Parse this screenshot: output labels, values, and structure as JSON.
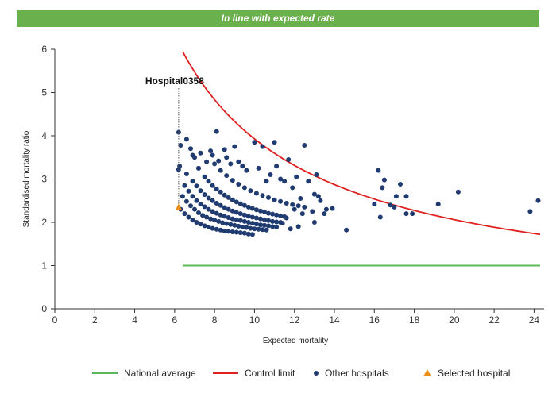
{
  "banner": "In line with expected rate",
  "legend": {
    "national": "National average",
    "control": "Control limit",
    "others": "Other hospitals",
    "selected": "Selected hospital"
  },
  "colors": {
    "national": "#5cb85c",
    "control": "#e02020",
    "others": "#1f3b70",
    "selected": "#e8901a",
    "banner": "#6ab04c"
  },
  "chart_data": {
    "type": "scatter",
    "title": "",
    "xlabel": "Expected mortality",
    "ylabel": "Standardised mortality ratio",
    "xlim": [
      0,
      24.5
    ],
    "ylim": [
      0,
      6
    ],
    "xticks": [
      0,
      2,
      4,
      6,
      8,
      10,
      12,
      14,
      16,
      18,
      20,
      22,
      24
    ],
    "yticks": [
      0,
      1,
      2,
      3,
      4,
      5,
      6
    ],
    "grid": false,
    "legend_position": "bottom",
    "annotation": {
      "label": "Hospital0358",
      "x": 6.2
    },
    "national_average": {
      "y": 1,
      "x_range": [
        6.4,
        24.3
      ]
    },
    "control_limit": {
      "x_range": [
        6.4,
        24.3
      ],
      "y_at_start": 5.95,
      "y_at_end": 1.72
    },
    "selected_hospital": {
      "x": 6.2,
      "y": 2.35
    },
    "other_hospitals": [
      [
        6.2,
        4.08
      ],
      [
        6.25,
        3.3
      ],
      [
        6.2,
        3.22
      ],
      [
        6.3,
        3.78
      ],
      [
        6.6,
        3.92
      ],
      [
        6.8,
        3.7
      ],
      [
        6.9,
        3.55
      ],
      [
        7.0,
        3.5
      ],
      [
        7.2,
        3.25
      ],
      [
        7.3,
        3.6
      ],
      [
        7.6,
        3.4
      ],
      [
        7.8,
        3.65
      ],
      [
        7.9,
        3.55
      ],
      [
        8.1,
        4.1
      ],
      [
        8.2,
        3.42
      ],
      [
        8.5,
        3.68
      ],
      [
        8.6,
        3.5
      ],
      [
        8.8,
        3.35
      ],
      [
        9.0,
        3.75
      ],
      [
        9.2,
        3.4
      ],
      [
        9.4,
        3.3
      ],
      [
        9.6,
        3.2
      ],
      [
        10.0,
        3.85
      ],
      [
        10.2,
        3.25
      ],
      [
        10.4,
        3.75
      ],
      [
        10.6,
        2.95
      ],
      [
        10.8,
        3.1
      ],
      [
        11.0,
        3.85
      ],
      [
        11.1,
        3.3
      ],
      [
        11.3,
        3.0
      ],
      [
        11.5,
        2.95
      ],
      [
        11.7,
        3.45
      ],
      [
        11.9,
        2.8
      ],
      [
        12.1,
        3.05
      ],
      [
        12.3,
        2.55
      ],
      [
        12.5,
        3.78
      ],
      [
        12.7,
        2.95
      ],
      [
        12.9,
        2.25
      ],
      [
        13.1,
        3.1
      ],
      [
        13.3,
        2.5
      ],
      [
        13.6,
        2.3
      ],
      [
        13.9,
        2.32
      ],
      [
        13.0,
        2.65
      ],
      [
        13.2,
        2.6
      ],
      [
        12.0,
        2.3
      ],
      [
        12.4,
        2.2
      ],
      [
        11.6,
        2.1
      ],
      [
        11.4,
        1.98
      ],
      [
        11.8,
        1.85
      ],
      [
        12.2,
        1.9
      ],
      [
        13.5,
        2.2
      ],
      [
        13.0,
        2.0
      ],
      [
        14.6,
        1.82
      ],
      [
        16.2,
        3.2
      ],
      [
        16.4,
        2.8
      ],
      [
        16.5,
        2.98
      ],
      [
        16.3,
        2.12
      ],
      [
        16.8,
        2.4
      ],
      [
        17.0,
        2.35
      ],
      [
        17.1,
        2.6
      ],
      [
        17.3,
        2.88
      ],
      [
        17.6,
        2.2
      ],
      [
        17.6,
        2.6
      ],
      [
        17.9,
        2.2
      ],
      [
        16.0,
        2.42
      ],
      [
        19.2,
        2.42
      ],
      [
        20.2,
        2.7
      ],
      [
        23.8,
        2.25
      ],
      [
        24.2,
        2.5
      ],
      [
        6.3,
        2.3
      ],
      [
        6.5,
        2.2
      ],
      [
        6.7,
        2.12
      ],
      [
        6.9,
        2.05
      ],
      [
        7.1,
        2.0
      ],
      [
        7.3,
        1.96
      ],
      [
        7.5,
        1.92
      ],
      [
        7.7,
        1.89
      ],
      [
        7.9,
        1.86
      ],
      [
        8.1,
        1.84
      ],
      [
        8.3,
        1.82
      ],
      [
        8.5,
        1.8
      ],
      [
        8.7,
        1.79
      ],
      [
        8.9,
        1.78
      ],
      [
        9.1,
        1.77
      ],
      [
        9.3,
        1.76
      ],
      [
        9.5,
        1.75
      ],
      [
        9.7,
        1.73
      ],
      [
        9.9,
        1.72
      ],
      [
        6.4,
        2.6
      ],
      [
        6.6,
        2.48
      ],
      [
        6.8,
        2.38
      ],
      [
        7.0,
        2.3
      ],
      [
        7.2,
        2.22
      ],
      [
        7.4,
        2.16
      ],
      [
        7.6,
        2.12
      ],
      [
        7.8,
        2.08
      ],
      [
        8.0,
        2.05
      ],
      [
        8.2,
        2.02
      ],
      [
        8.4,
        1.99
      ],
      [
        8.6,
        1.97
      ],
      [
        8.8,
        1.95
      ],
      [
        9.0,
        1.93
      ],
      [
        9.2,
        1.91
      ],
      [
        9.4,
        1.89
      ],
      [
        9.6,
        1.88
      ],
      [
        9.8,
        1.86
      ],
      [
        10.0,
        1.85
      ],
      [
        10.2,
        1.84
      ],
      [
        10.4,
        1.83
      ],
      [
        10.6,
        1.82
      ],
      [
        6.5,
        2.85
      ],
      [
        6.7,
        2.72
      ],
      [
        6.9,
        2.6
      ],
      [
        7.1,
        2.5
      ],
      [
        7.3,
        2.42
      ],
      [
        7.5,
        2.36
      ],
      [
        7.7,
        2.3
      ],
      [
        7.9,
        2.25
      ],
      [
        8.1,
        2.21
      ],
      [
        8.3,
        2.17
      ],
      [
        8.5,
        2.14
      ],
      [
        8.7,
        2.11
      ],
      [
        8.9,
        2.08
      ],
      [
        9.1,
        2.06
      ],
      [
        9.3,
        2.04
      ],
      [
        9.5,
        2.02
      ],
      [
        9.7,
        2.0
      ],
      [
        9.9,
        1.98
      ],
      [
        10.1,
        1.96
      ],
      [
        10.3,
        1.94
      ],
      [
        10.5,
        1.93
      ],
      [
        10.7,
        1.92
      ],
      [
        10.9,
        1.9
      ],
      [
        11.1,
        1.89
      ],
      [
        6.6,
        3.12
      ],
      [
        6.9,
        2.95
      ],
      [
        7.1,
        2.84
      ],
      [
        7.3,
        2.73
      ],
      [
        7.5,
        2.64
      ],
      [
        7.7,
        2.56
      ],
      [
        7.9,
        2.5
      ],
      [
        8.1,
        2.44
      ],
      [
        8.3,
        2.39
      ],
      [
        8.5,
        2.34
      ],
      [
        8.7,
        2.3
      ],
      [
        8.9,
        2.26
      ],
      [
        9.1,
        2.23
      ],
      [
        9.3,
        2.2
      ],
      [
        9.5,
        2.17
      ],
      [
        9.7,
        2.14
      ],
      [
        9.9,
        2.12
      ],
      [
        10.1,
        2.1
      ],
      [
        10.3,
        2.08
      ],
      [
        10.5,
        2.06
      ],
      [
        10.7,
        2.04
      ],
      [
        10.9,
        2.02
      ],
      [
        11.1,
        2.01
      ],
      [
        11.3,
        2.0
      ],
      [
        7.2,
        3.25
      ],
      [
        7.5,
        3.05
      ],
      [
        7.7,
        2.95
      ],
      [
        7.9,
        2.85
      ],
      [
        8.1,
        2.77
      ],
      [
        8.3,
        2.7
      ],
      [
        8.5,
        2.63
      ],
      [
        8.7,
        2.57
      ],
      [
        8.9,
        2.52
      ],
      [
        9.1,
        2.47
      ],
      [
        9.3,
        2.43
      ],
      [
        9.5,
        2.39
      ],
      [
        9.7,
        2.35
      ],
      [
        9.9,
        2.32
      ],
      [
        10.1,
        2.29
      ],
      [
        10.3,
        2.26
      ],
      [
        10.5,
        2.24
      ],
      [
        10.7,
        2.21
      ],
      [
        10.9,
        2.19
      ],
      [
        11.1,
        2.17
      ],
      [
        11.3,
        2.15
      ],
      [
        11.5,
        2.13
      ],
      [
        8.0,
        3.35
      ],
      [
        8.3,
        3.2
      ],
      [
        8.6,
        3.08
      ],
      [
        8.9,
        2.97
      ],
      [
        9.2,
        2.88
      ],
      [
        9.5,
        2.8
      ],
      [
        9.8,
        2.73
      ],
      [
        10.1,
        2.67
      ],
      [
        10.4,
        2.62
      ],
      [
        10.7,
        2.57
      ],
      [
        11.0,
        2.52
      ],
      [
        11.3,
        2.48
      ],
      [
        11.6,
        2.44
      ],
      [
        11.9,
        2.41
      ],
      [
        12.2,
        2.38
      ],
      [
        12.5,
        2.35
      ]
    ]
  }
}
